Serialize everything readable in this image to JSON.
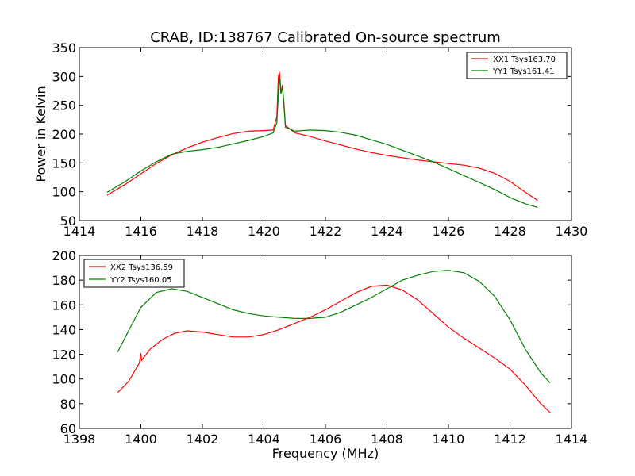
{
  "chart_data": [
    {
      "type": "line",
      "title": "CRAB, ID:138767 Calibrated On-source spectrum",
      "xlabel": "",
      "ylabel": "Power in Kelvin",
      "xlim": [
        1414,
        1430
      ],
      "ylim": [
        50,
        350
      ],
      "xticks": [
        1414,
        1416,
        1418,
        1420,
        1422,
        1424,
        1426,
        1428,
        1430
      ],
      "yticks": [
        50,
        100,
        150,
        200,
        250,
        300,
        350
      ],
      "grid": false,
      "legend_position": "top-right",
      "series": [
        {
          "name": "XX1 Tsys163.70",
          "color": "#ff0000",
          "points": [
            [
              1414.9,
              94
            ],
            [
              1415.5,
              113
            ],
            [
              1416,
              131
            ],
            [
              1416.5,
              149
            ],
            [
              1417,
              164
            ],
            [
              1417.5,
              176
            ],
            [
              1418,
              186
            ],
            [
              1418.5,
              194
            ],
            [
              1419,
              201
            ],
            [
              1419.5,
              205
            ],
            [
              1420,
              206
            ],
            [
              1420.3,
              207
            ],
            [
              1420.42,
              230
            ],
            [
              1420.47,
              300
            ],
            [
              1420.5,
              308
            ],
            [
              1420.53,
              295
            ],
            [
              1420.55,
              270
            ],
            [
              1420.6,
              285
            ],
            [
              1420.65,
              255
            ],
            [
              1420.7,
              215
            ],
            [
              1421,
              202
            ],
            [
              1421.5,
              196
            ],
            [
              1422,
              188
            ],
            [
              1422.5,
              181
            ],
            [
              1423,
              174
            ],
            [
              1423.5,
              168
            ],
            [
              1424,
              163
            ],
            [
              1424.5,
              159
            ],
            [
              1425,
              155
            ],
            [
              1425.5,
              152
            ],
            [
              1426,
              149
            ],
            [
              1426.5,
              146
            ],
            [
              1427,
              141
            ],
            [
              1427.5,
              132
            ],
            [
              1428,
              118
            ],
            [
              1428.5,
              99
            ],
            [
              1428.9,
              85
            ]
          ]
        },
        {
          "name": "YY1 Tsys161.41",
          "color": "#008000",
          "points": [
            [
              1414.9,
              99
            ],
            [
              1415.5,
              118
            ],
            [
              1416,
              136
            ],
            [
              1416.5,
              152
            ],
            [
              1417,
              165
            ],
            [
              1417.5,
              170
            ],
            [
              1418,
              173
            ],
            [
              1418.5,
              177
            ],
            [
              1419,
              183
            ],
            [
              1419.5,
              189
            ],
            [
              1420,
              196
            ],
            [
              1420.3,
              202
            ],
            [
              1420.42,
              220
            ],
            [
              1420.47,
              270
            ],
            [
              1420.5,
              298
            ],
            [
              1420.53,
              285
            ],
            [
              1420.55,
              270
            ],
            [
              1420.6,
              282
            ],
            [
              1420.65,
              250
            ],
            [
              1420.7,
              212
            ],
            [
              1421,
              205
            ],
            [
              1421.5,
              207
            ],
            [
              1422,
              206
            ],
            [
              1422.5,
              203
            ],
            [
              1423,
              198
            ],
            [
              1423.5,
              190
            ],
            [
              1424,
              182
            ],
            [
              1424.5,
              172
            ],
            [
              1425,
              162
            ],
            [
              1425.5,
              152
            ],
            [
              1426,
              140
            ],
            [
              1426.5,
              128
            ],
            [
              1427,
              116
            ],
            [
              1427.5,
              104
            ],
            [
              1428,
              90
            ],
            [
              1428.5,
              79
            ],
            [
              1428.9,
              73
            ]
          ]
        }
      ]
    },
    {
      "type": "line",
      "title": "",
      "xlabel": "Frequency (MHz)",
      "ylabel": "",
      "xlim": [
        1398,
        1414
      ],
      "ylim": [
        60,
        200
      ],
      "xticks": [
        1398,
        1400,
        1402,
        1404,
        1406,
        1408,
        1410,
        1412,
        1414
      ],
      "yticks": [
        60,
        80,
        100,
        120,
        140,
        160,
        180,
        200
      ],
      "grid": false,
      "legend_position": "top-left",
      "series": [
        {
          "name": "XX2 Tsys136.59",
          "color": "#ff0000",
          "points": [
            [
              1399.25,
              89
            ],
            [
              1399.6,
              98
            ],
            [
              1399.95,
              113
            ],
            [
              1400.0,
              121
            ],
            [
              1400.02,
              115
            ],
            [
              1400.3,
              124
            ],
            [
              1400.7,
              132
            ],
            [
              1401.1,
              137
            ],
            [
              1401.5,
              139
            ],
            [
              1402,
              138
            ],
            [
              1402.5,
              136
            ],
            [
              1403,
              134
            ],
            [
              1403.5,
              134
            ],
            [
              1404,
              136
            ],
            [
              1404.5,
              140
            ],
            [
              1405,
              145
            ],
            [
              1405.5,
              150
            ],
            [
              1406,
              156
            ],
            [
              1406.5,
              163
            ],
            [
              1407,
              170
            ],
            [
              1407.5,
              175
            ],
            [
              1408,
              176
            ],
            [
              1408.5,
              172
            ],
            [
              1409,
              164
            ],
            [
              1409.5,
              153
            ],
            [
              1410,
              142
            ],
            [
              1410.5,
              133
            ],
            [
              1411,
              125
            ],
            [
              1411.5,
              117
            ],
            [
              1412,
              108
            ],
            [
              1412.5,
              95
            ],
            [
              1413,
              80
            ],
            [
              1413.3,
              73
            ]
          ]
        },
        {
          "name": "YY2 Tsys160.05",
          "color": "#008000",
          "points": [
            [
              1399.25,
              122
            ],
            [
              1399.6,
              139
            ],
            [
              1400,
              158
            ],
            [
              1400.5,
              170
            ],
            [
              1401,
              173
            ],
            [
              1401.5,
              171
            ],
            [
              1402,
              166
            ],
            [
              1402.5,
              161
            ],
            [
              1403,
              156
            ],
            [
              1403.5,
              153
            ],
            [
              1404,
              151
            ],
            [
              1404.5,
              150
            ],
            [
              1405,
              149
            ],
            [
              1405.5,
              149
            ],
            [
              1406,
              150
            ],
            [
              1406.5,
              154
            ],
            [
              1407,
              160
            ],
            [
              1407.5,
              166
            ],
            [
              1408,
              173
            ],
            [
              1408.5,
              180
            ],
            [
              1409,
              184
            ],
            [
              1409.5,
              187
            ],
            [
              1410,
              188
            ],
            [
              1410.5,
              186
            ],
            [
              1411,
              179
            ],
            [
              1411.5,
              167
            ],
            [
              1412,
              148
            ],
            [
              1412.5,
              124
            ],
            [
              1413,
              105
            ],
            [
              1413.3,
              97
            ]
          ]
        }
      ]
    }
  ]
}
